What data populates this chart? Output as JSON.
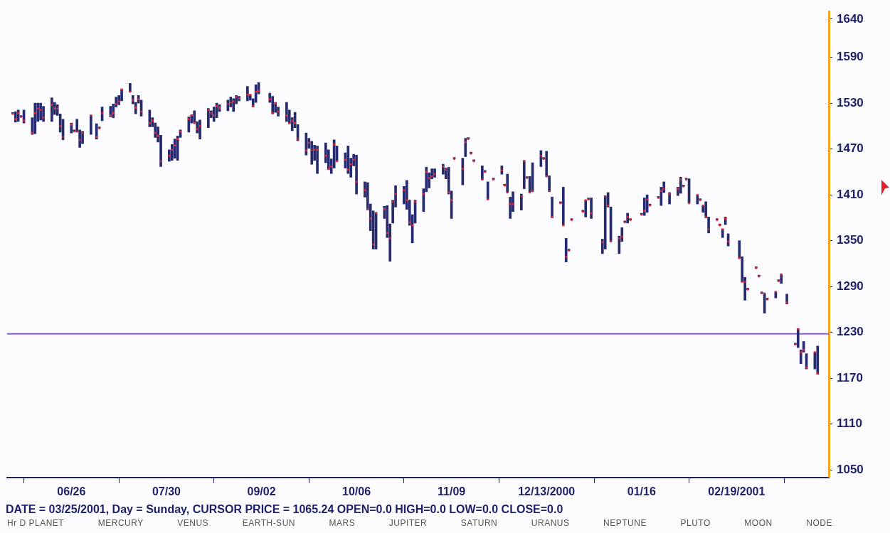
{
  "chart_data": {
    "type": "bar",
    "marker": "square",
    "x": [
      "2000-06-05",
      "2000-06-06",
      "2000-06-07",
      "2000-06-08",
      "2000-06-09",
      "2000-06-12",
      "2000-06-13",
      "2000-06-14",
      "2000-06-15",
      "2000-06-16",
      "2000-06-19",
      "2000-06-20",
      "2000-06-21",
      "2000-06-22",
      "2000-06-23",
      "2000-06-26",
      "2000-06-27",
      "2000-06-28",
      "2000-06-29",
      "2000-06-30",
      "2000-07-03",
      "2000-07-05",
      "2000-07-06",
      "2000-07-07",
      "2000-07-10",
      "2000-07-11",
      "2000-07-12",
      "2000-07-13",
      "2000-07-14",
      "2000-07-17",
      "2000-07-18",
      "2000-07-19",
      "2000-07-20",
      "2000-07-21",
      "2000-07-24",
      "2000-07-25",
      "2000-07-26",
      "2000-07-27",
      "2000-07-28",
      "2000-07-31",
      "2000-08-01",
      "2000-08-02",
      "2000-08-03",
      "2000-08-04",
      "2000-08-07",
      "2000-08-08",
      "2000-08-09",
      "2000-08-10",
      "2000-08-11",
      "2000-08-14",
      "2000-08-15",
      "2000-08-16",
      "2000-08-17",
      "2000-08-18",
      "2000-08-21",
      "2000-08-22",
      "2000-08-23",
      "2000-08-24",
      "2000-08-25",
      "2000-08-28",
      "2000-08-29",
      "2000-08-30",
      "2000-08-31",
      "2000-09-01",
      "2000-09-05",
      "2000-09-06",
      "2000-09-07",
      "2000-09-08",
      "2000-09-11",
      "2000-09-12",
      "2000-09-13",
      "2000-09-14",
      "2000-09-15",
      "2000-09-18",
      "2000-09-19",
      "2000-09-20",
      "2000-09-21",
      "2000-09-22",
      "2000-09-25",
      "2000-09-26",
      "2000-09-27",
      "2000-09-28",
      "2000-09-29",
      "2000-10-02",
      "2000-10-03",
      "2000-10-04",
      "2000-10-05",
      "2000-10-06",
      "2000-10-09",
      "2000-10-10",
      "2000-10-11",
      "2000-10-12",
      "2000-10-13",
      "2000-10-16",
      "2000-10-17",
      "2000-10-18",
      "2000-10-19",
      "2000-10-20",
      "2000-10-23",
      "2000-10-24",
      "2000-10-25",
      "2000-10-26",
      "2000-10-27",
      "2000-10-30",
      "2000-10-31",
      "2000-11-01",
      "2000-11-02",
      "2000-11-03",
      "2000-11-06",
      "2000-11-07",
      "2000-11-08",
      "2000-11-09",
      "2000-11-10",
      "2000-11-13",
      "2000-11-14",
      "2000-11-15",
      "2000-11-16",
      "2000-11-17",
      "2000-11-20",
      "2000-11-21",
      "2000-11-22",
      "2000-11-24",
      "2000-11-27",
      "2000-11-28",
      "2000-11-29",
      "2000-11-30",
      "2000-12-01",
      "2000-12-04",
      "2000-12-05",
      "2000-12-06",
      "2000-12-07",
      "2000-12-08",
      "2000-12-11",
      "2000-12-12",
      "2000-12-13",
      "2000-12-14",
      "2000-12-15",
      "2000-12-18",
      "2000-12-19",
      "2000-12-20",
      "2000-12-21",
      "2000-12-22",
      "2000-12-26",
      "2000-12-27",
      "2000-12-28",
      "2000-12-29",
      "2001-01-02",
      "2001-01-03",
      "2001-01-04",
      "2001-01-05",
      "2001-01-08",
      "2001-01-09",
      "2001-01-10",
      "2001-01-11",
      "2001-01-12",
      "2001-01-16",
      "2001-01-17",
      "2001-01-18",
      "2001-01-19",
      "2001-01-22",
      "2001-01-23",
      "2001-01-24",
      "2001-01-26",
      "2001-01-29",
      "2001-01-30",
      "2001-01-31",
      "2001-02-01",
      "2001-02-02",
      "2001-02-05",
      "2001-02-06",
      "2001-02-07",
      "2001-02-08",
      "2001-02-09",
      "2001-02-12",
      "2001-02-13",
      "2001-02-14",
      "2001-02-15",
      "2001-02-16",
      "2001-02-20",
      "2001-02-21",
      "2001-02-22",
      "2001-02-23",
      "2001-02-26",
      "2001-02-27",
      "2001-02-28",
      "2001-03-01",
      "2001-03-02",
      "2001-03-05",
      "2001-03-06",
      "2001-03-07",
      "2001-03-09",
      "2001-03-12",
      "2001-03-13",
      "2001-03-14",
      "2001-03-15",
      "2001-03-16",
      "2001-03-19",
      "2001-03-20"
    ],
    "series": [
      {
        "type": "bar",
        "color": "#262a6e",
        "base": [
          1516,
          1505,
          1506,
          1512,
          1504,
          1489,
          1490,
          1506,
          1508,
          1506,
          1506,
          1515,
          1514,
          1492,
          1482,
          1491,
          1493,
          1492,
          1472,
          1477,
          1489,
          1483,
          1497,
          1507,
          1512,
          1511,
          1525,
          1528,
          1533,
          1545,
          1529,
          1516,
          1530,
          1513,
          1499,
          1499,
          1485,
          1479,
          1447,
          1454,
          1455,
          1458,
          1455,
          1485,
          1492,
          1504,
          1504,
          1491,
          1483,
          1498,
          1511,
          1506,
          1511,
          1519,
          1520,
          1525,
          1519,
          1529,
          1533,
          1533,
          1534,
          1525,
          1531,
          1542,
          1531,
          1516,
          1518,
          1513,
          1506,
          1503,
          1494,
          1498,
          1481,
          1462,
          1471,
          1450,
          1455,
          1438,
          1452,
          1443,
          1438,
          1445,
          1454,
          1445,
          1438,
          1433,
          1448,
          1411,
          1407,
          1390,
          1363,
          1339,
          1339,
          1379,
          1354,
          1323,
          1373,
          1394,
          1398,
          1391,
          1370,
          1347,
          1373,
          1388,
          1414,
          1419,
          1431,
          1433,
          1437,
          1431,
          1411,
          1379,
          1457,
          1423,
          1460,
          1483,
          1464,
          1454,
          1430,
          1440,
          1404,
          1430,
          1437,
          1422,
          1413,
          1379,
          1388,
          1390,
          1418,
          1432,
          1413,
          1414,
          1447,
          1457,
          1434,
          1414,
          1380,
          1399,
          1370,
          1322,
          1337,
          1377,
          1388,
          1381,
          1404,
          1379,
          1333,
          1339,
          1394,
          1349,
          1333,
          1349,
          1374,
          1373,
          1377,
          1384,
          1383,
          1387,
          1396,
          1406,
          1396,
          1413,
          1398,
          1409,
          1412,
          1421,
          1430,
          1399,
          1398,
          1403,
          1387,
          1380,
          1360,
          1377,
          1370,
          1354,
          1371,
          1343,
          1327,
          1296,
          1272,
          1286,
          1314,
          1303,
          1281,
          1255,
          1273,
          1275,
          1297,
          1294,
          1267,
          1214,
          1210,
          1189,
          1204,
          1182,
          1182,
          1175
        ],
        "values": [
          0,
          14,
          15,
          0,
          17,
          22,
          40,
          24,
          22,
          20,
          31,
          16,
          14,
          24,
          27,
          13,
          0,
          17,
          23,
          16,
          25,
          20,
          0,
          18,
          14,
          18,
          13,
          12,
          15,
          11,
          11,
          15,
          10,
          21,
          22,
          12,
          19,
          20,
          41,
          15,
          21,
          25,
          32,
          10,
          20,
          11,
          16,
          15,
          25,
          25,
          9,
          19,
          19,
          9,
          14,
          13,
          17,
          11,
          6,
          19,
          7,
          11,
          23,
          15,
          12,
          23,
          13,
          12,
          25,
          18,
          17,
          20,
          21,
          29,
          13,
          30,
          20,
          36,
          26,
          26,
          19,
          37,
          20,
          20,
          36,
          25,
          15,
          51,
          20,
          36,
          35,
          50,
          48,
          16,
          42,
          49,
          30,
          28,
          23,
          38,
          33,
          37,
          30,
          30,
          32,
          20,
          13,
          11,
          13,
          14,
          35,
          36,
          0,
          35,
          24,
          0,
          0,
          0,
          18,
          0,
          23,
          0,
          11,
          0,
          24,
          28,
          26,
          21,
          37,
          0,
          21,
          38,
          21,
          0,
          33,
          21,
          27,
          0,
          50,
          31,
          0,
          0,
          0,
          22,
          0,
          27,
          19,
          70,
          19,
          45,
          23,
          18,
          0,
          13,
          0,
          0,
          23,
          23,
          0,
          0,
          24,
          14,
          15,
          11,
          21,
          0,
          0,
          32,
          12,
          0,
          9,
          21,
          21,
          0,
          0,
          11,
          10,
          16,
          23,
          33,
          30,
          0,
          0,
          0,
          0,
          26,
          0,
          8,
          0,
          12,
          13,
          0,
          25,
          18,
          14,
          20,
          22,
          37
        ]
      },
      {
        "type": "scatter",
        "color": "#f0202a",
        "values": [
          1516,
          1509,
          1517,
          1512,
          1507,
          1491,
          1517,
          1523,
          1521,
          1511,
          1528,
          1523,
          1523,
          1500,
          1486,
          1502,
          1493,
          1493,
          1482,
          1491,
          1514,
          1486,
          1497,
          1517,
          1514,
          1517,
          1529,
          1532,
          1548,
          1545,
          1534,
          1524,
          1535,
          1519,
          1504,
          1507,
          1491,
          1487,
          1454,
          1461,
          1469,
          1475,
          1483,
          1493,
          1509,
          1514,
          1504,
          1496,
          1500,
          1521,
          1517,
          1514,
          1526,
          1524,
          1529,
          1531,
          1532,
          1538,
          1536,
          1541,
          1541,
          1526,
          1545,
          1546,
          1535,
          1517,
          1530,
          1519,
          1514,
          1504,
          1507,
          1504,
          1483,
          1468,
          1478,
          1469,
          1469,
          1469,
          1461,
          1444,
          1447,
          1476,
          1454,
          1456,
          1443,
          1450,
          1456,
          1427,
          1416,
          1391,
          1379,
          1345,
          1386,
          1391,
          1360,
          1353,
          1401,
          1411,
          1416,
          1403,
          1374,
          1370,
          1401,
          1411,
          1440,
          1432,
          1434,
          1437,
          1447,
          1443,
          1413,
          1403,
          1457,
          1444,
          1479,
          1483,
          1464,
          1454,
          1430,
          1440,
          1404,
          1430,
          1442,
          1422,
          1413,
          1398,
          1398,
          1408,
          1454,
          1432,
          1413,
          1415,
          1461,
          1457,
          1434,
          1415,
          1381,
          1399,
          1370,
          1329,
          1337,
          1377,
          1388,
          1403,
          1404,
          1386,
          1348,
          1408,
          1396,
          1349,
          1353,
          1355,
          1374,
          1381,
          1377,
          1384,
          1389,
          1404,
          1396,
          1406,
          1415,
          1418,
          1411,
          1418,
          1430,
          1421,
          1430,
          1399,
          1410,
          1403,
          1396,
          1381,
          1365,
          1377,
          1370,
          1365,
          1379,
          1349,
          1327,
          1296,
          1296,
          1286,
          1314,
          1303,
          1281,
          1281,
          1273,
          1283,
          1297,
          1306,
          1269,
          1214,
          1234,
          1204,
          1207,
          1184,
          1204,
          1176
        ]
      }
    ],
    "xlim": [
      "2000-06-03",
      "2001-03-24"
    ],
    "xticks": [
      {
        "value": "2000-06-26",
        "label": "06/26"
      },
      {
        "value": "2000-07-30",
        "label": "07/30"
      },
      {
        "value": "2000-09-02",
        "label": "09/02"
      },
      {
        "value": "2000-10-06",
        "label": "10/06"
      },
      {
        "value": "2000-11-09",
        "label": "11/09"
      },
      {
        "value": "2000-12-13",
        "label": "12/13/2000"
      },
      {
        "value": "2001-01-16",
        "label": "01/16"
      },
      {
        "value": "2001-02-19",
        "label": "02/19/2001"
      }
    ],
    "ylim": [
      1040,
      1650
    ],
    "yticks": [
      1050,
      1110,
      1170,
      1230,
      1290,
      1350,
      1410,
      1470,
      1530,
      1590,
      1640
    ],
    "ref_lines": [
      {
        "axis": "y",
        "value": 1228,
        "color": "#8a5cf5"
      }
    ],
    "annotations": [
      "DATE = 03/25/2001, Day = Sunday, CURSOR PRICE = 1065.24 OPEN=0.0 HIGH=0.0 LOW=0.0 CLOSE=0.0",
      "Hr D PLANET",
      "MERCURY",
      "VENUS",
      "EARTH-SUN",
      "MARS",
      "JUPITER",
      "SATURN",
      "URANUS",
      "NEPTUNE",
      "PLUTO",
      "MOON",
      "NODE"
    ]
  }
}
